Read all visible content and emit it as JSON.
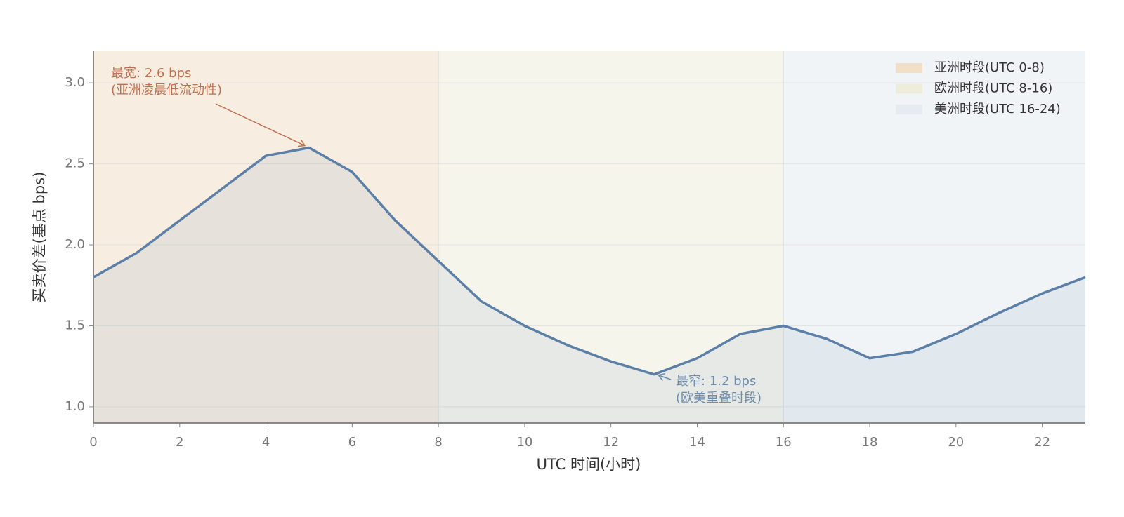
{
  "chart_data": {
    "type": "line",
    "x": [
      0,
      1,
      2,
      3,
      4,
      5,
      6,
      7,
      8,
      9,
      10,
      11,
      12,
      13,
      14,
      15,
      16,
      17,
      18,
      19,
      20,
      21,
      22,
      23
    ],
    "series": [
      {
        "name": "买卖价差",
        "color": "#5b7fa6",
        "values": [
          1.8,
          1.95,
          2.15,
          2.35,
          2.55,
          2.6,
          2.45,
          2.15,
          1.9,
          1.65,
          1.5,
          1.38,
          1.28,
          1.2,
          1.3,
          1.45,
          1.5,
          1.42,
          1.3,
          1.34,
          1.45,
          1.58,
          1.7,
          1.8
        ]
      }
    ],
    "xlim": [
      0,
      23
    ],
    "xticks": [
      0,
      2,
      4,
      6,
      8,
      10,
      12,
      14,
      16,
      18,
      20,
      22
    ],
    "ylim": [
      0.9,
      3.2
    ],
    "yticks": [
      {
        "value": 1,
        "label": "1.0"
      },
      {
        "value": 1.5,
        "label": "1.5"
      },
      {
        "value": 2,
        "label": "2.0"
      },
      {
        "value": 2.5,
        "label": "2.5"
      },
      {
        "value": 3,
        "label": "3.0"
      }
    ],
    "xlabel": "UTC 时间(小时)",
    "ylabel": "买卖价差(基点 bps)",
    "grid": true,
    "legend": "upper right",
    "sessions": [
      {
        "name": "亚洲时段(UTC 0-8)",
        "span": [
          0,
          8
        ],
        "color": "#f2dfc8"
      },
      {
        "name": "欧洲时段(UTC 8-16)",
        "span": [
          8,
          16
        ],
        "color": "#eeeddc"
      },
      {
        "name": "美洲时段(UTC 16-24)",
        "span": [
          16,
          24
        ],
        "color": "#e6ebf1"
      }
    ],
    "annotations": [
      {
        "text": [
          "最宽: 2.6 bps",
          "(亚洲凌晨低流动性)"
        ],
        "xy": [
          5,
          2.6
        ],
        "color": "#c0704f"
      },
      {
        "text": [
          "最窄: 1.2 bps",
          "(欧美重叠时段)"
        ],
        "xy": [
          13,
          1.2
        ],
        "color": "#6f8cad"
      }
    ]
  }
}
